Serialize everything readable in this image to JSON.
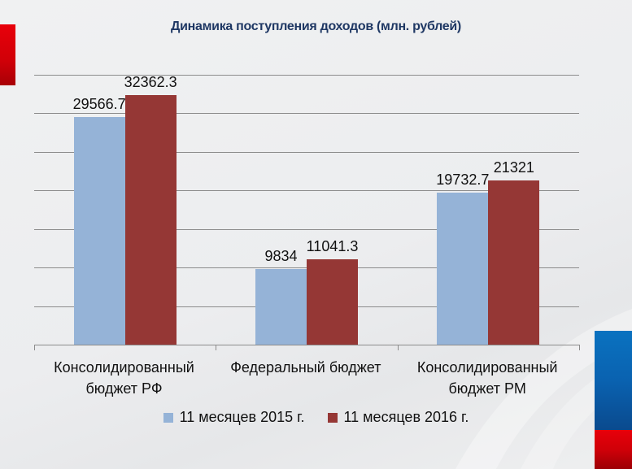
{
  "chart_data": {
    "type": "bar",
    "title": "Динамика поступления доходов (млн. рублей)",
    "xlabel": "",
    "ylabel": "",
    "ylim": [
      0,
      35000
    ],
    "grid": true,
    "legend_position": "bottom",
    "categories": [
      "Консолидированный бюджет РФ",
      "Федеральный бюджет",
      "Консолидированный бюджет РМ"
    ],
    "category_lines": [
      [
        "Консолидированный",
        "бюджет РФ"
      ],
      [
        "Федеральный бюджет",
        ""
      ],
      [
        "Консолидированный",
        "бюджет РМ"
      ]
    ],
    "series": [
      {
        "name": "11 месяцев 2015 г.",
        "color": "#95b3d7",
        "values": [
          29566.7,
          9834,
          19732.7
        ],
        "labels": [
          "29566.7",
          "9834",
          "19732.7"
        ]
      },
      {
        "name": "11 месяцев 2016 г.",
        "color": "#953735",
        "values": [
          32362.3,
          11041.3,
          21321
        ],
        "labels": [
          "32362.3",
          "11041.3",
          "21321"
        ]
      }
    ]
  },
  "decor": {
    "left_accent_color": "#e8000a",
    "right_flag_colors": [
      "#0a62b0",
      "#e8000a"
    ]
  }
}
